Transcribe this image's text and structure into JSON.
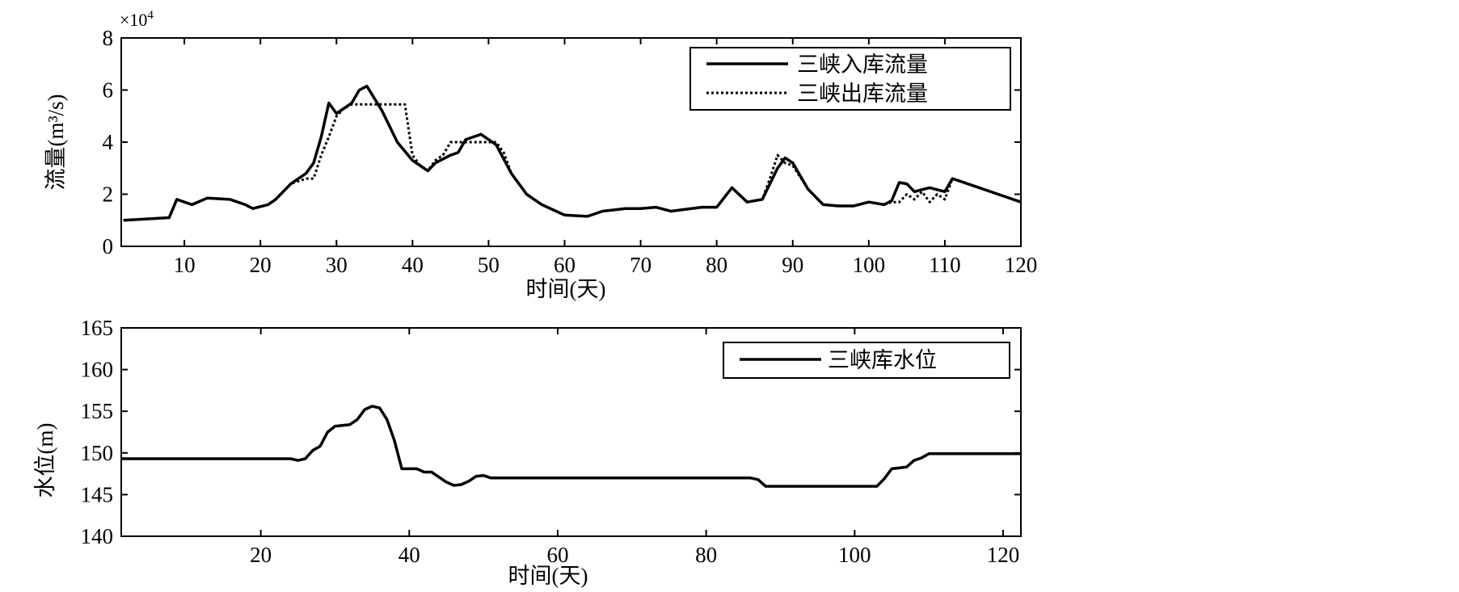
{
  "chart_data": [
    {
      "type": "line",
      "title": "",
      "xlabel": "时间(天)",
      "ylabel": "流量(m³/s)",
      "y_multiplier": "×10",
      "y_multiplier_exp": "4",
      "xlim": [
        1.7,
        120
      ],
      "ylim": [
        0,
        8
      ],
      "xticks": [
        10,
        20,
        30,
        40,
        50,
        60,
        70,
        80,
        90,
        100,
        110,
        120
      ],
      "yticks": [
        0,
        2,
        4,
        6,
        8
      ],
      "legend_position": "top-right",
      "grid": false,
      "series": [
        {
          "name": "三峡入库流量",
          "style": "solid",
          "x": [
            2,
            8,
            9,
            11,
            13,
            16,
            18,
            19,
            21,
            22,
            24,
            26,
            27,
            28,
            29,
            30,
            31,
            32,
            33,
            34,
            36,
            38,
            40,
            42,
            43,
            45,
            46,
            47,
            49,
            51,
            53,
            55,
            57,
            60,
            63,
            65,
            68,
            70,
            72,
            74,
            78,
            80,
            82,
            84,
            86,
            88,
            89,
            90,
            92,
            94,
            96,
            98,
            100,
            102,
            103,
            104,
            105,
            106,
            108,
            110,
            111,
            114,
            117,
            120
          ],
          "y": [
            1.0,
            1.1,
            1.8,
            1.6,
            1.85,
            1.8,
            1.6,
            1.45,
            1.6,
            1.8,
            2.4,
            2.8,
            3.2,
            4.2,
            5.5,
            5.1,
            5.3,
            5.5,
            6.0,
            6.15,
            5.2,
            4.0,
            3.3,
            2.9,
            3.2,
            3.5,
            3.6,
            4.1,
            4.3,
            3.9,
            2.8,
            2.0,
            1.6,
            1.2,
            1.15,
            1.35,
            1.45,
            1.45,
            1.5,
            1.35,
            1.5,
            1.5,
            2.25,
            1.7,
            1.8,
            3.0,
            3.4,
            3.2,
            2.2,
            1.6,
            1.55,
            1.55,
            1.7,
            1.6,
            1.75,
            2.45,
            2.4,
            2.1,
            2.25,
            2.1,
            2.6,
            2.3,
            2.0,
            1.7
          ]
        },
        {
          "name": "三峡出库流量",
          "style": "dotted",
          "x": [
            2,
            8,
            9,
            11,
            13,
            16,
            18,
            19,
            21,
            22,
            24,
            26,
            27,
            28,
            29,
            30,
            31,
            32,
            39,
            40,
            41,
            42,
            43,
            44,
            45,
            49,
            51,
            52,
            53,
            55,
            57,
            60,
            63,
            65,
            68,
            70,
            72,
            74,
            78,
            80,
            82,
            84,
            86,
            87,
            88,
            89,
            90,
            92,
            94,
            96,
            98,
            100,
            102,
            103,
            104,
            105,
            106,
            107,
            108,
            109,
            110,
            111,
            114,
            117,
            120
          ],
          "y": [
            1.0,
            1.1,
            1.8,
            1.6,
            1.85,
            1.8,
            1.6,
            1.45,
            1.6,
            1.8,
            2.4,
            2.6,
            2.6,
            3.5,
            4.2,
            5.0,
            5.3,
            5.45,
            5.45,
            3.5,
            3.1,
            2.9,
            3.3,
            3.5,
            4.0,
            4.0,
            4.0,
            3.6,
            2.8,
            2.0,
            1.6,
            1.2,
            1.15,
            1.35,
            1.45,
            1.45,
            1.5,
            1.35,
            1.5,
            1.5,
            2.25,
            1.7,
            1.8,
            2.6,
            3.5,
            3.2,
            3.1,
            2.2,
            1.6,
            1.55,
            1.55,
            1.7,
            1.6,
            1.7,
            1.7,
            2.0,
            1.8,
            2.1,
            1.7,
            2.0,
            1.8,
            2.6,
            2.3,
            2.0,
            1.7
          ]
        }
      ]
    },
    {
      "type": "line",
      "title": "",
      "xlabel": "时间(天)",
      "ylabel": "水位(m)",
      "xlim": [
        1.2,
        122.4
      ],
      "ylim": [
        140,
        165
      ],
      "xticks": [
        20,
        40,
        60,
        80,
        100,
        120
      ],
      "yticks": [
        140,
        145,
        150,
        155,
        160,
        165
      ],
      "legend_position": "top-right",
      "grid": false,
      "series": [
        {
          "name": "三峡库水位",
          "style": "solid",
          "x": [
            1.2,
            24,
            25,
            26,
            27,
            28,
            29,
            30,
            31,
            32,
            33,
            34,
            35,
            36,
            37,
            38,
            39,
            41,
            42,
            43,
            44,
            45,
            46,
            47,
            48,
            49,
            50,
            51,
            86,
            87,
            88,
            103,
            104,
            105,
            106,
            107,
            108,
            109,
            110,
            122.4
          ],
          "y": [
            149.3,
            149.3,
            149.1,
            149.3,
            150.3,
            150.8,
            152.5,
            153.2,
            153.3,
            153.4,
            154.0,
            155.2,
            155.6,
            155.4,
            154.0,
            151.5,
            148.1,
            148.1,
            147.7,
            147.7,
            147.1,
            146.5,
            146.1,
            146.2,
            146.6,
            147.2,
            147.3,
            147.0,
            147.0,
            146.8,
            146.0,
            146.0,
            146.9,
            148.1,
            148.2,
            148.3,
            149.1,
            149.4,
            149.9,
            149.9
          ]
        }
      ]
    }
  ]
}
